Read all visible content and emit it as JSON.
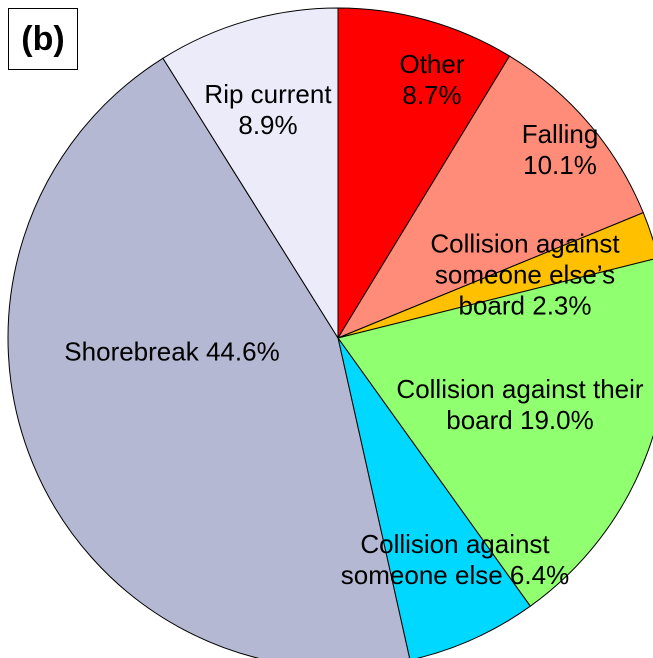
{
  "chart_data": {
    "type": "pie",
    "title": "(b)",
    "categories": [
      "Other",
      "Falling",
      "Collision against someone else’s board",
      "Collision against their board",
      "Collision against someone else",
      "Shorebreak",
      "Rip current"
    ],
    "values": [
      8.7,
      10.1,
      2.3,
      19.0,
      6.4,
      44.6,
      8.9
    ],
    "value_labels": [
      "8.7%",
      "10.1%",
      "2.3%",
      "19.0%",
      "6.4%",
      "44.6%",
      "8.9%"
    ],
    "colors": [
      "#ff0000",
      "#ff8c78",
      "#ffc000",
      "#90ff70",
      "#00d8ff",
      "#b4b8d2",
      "#ecebfa"
    ]
  }
}
